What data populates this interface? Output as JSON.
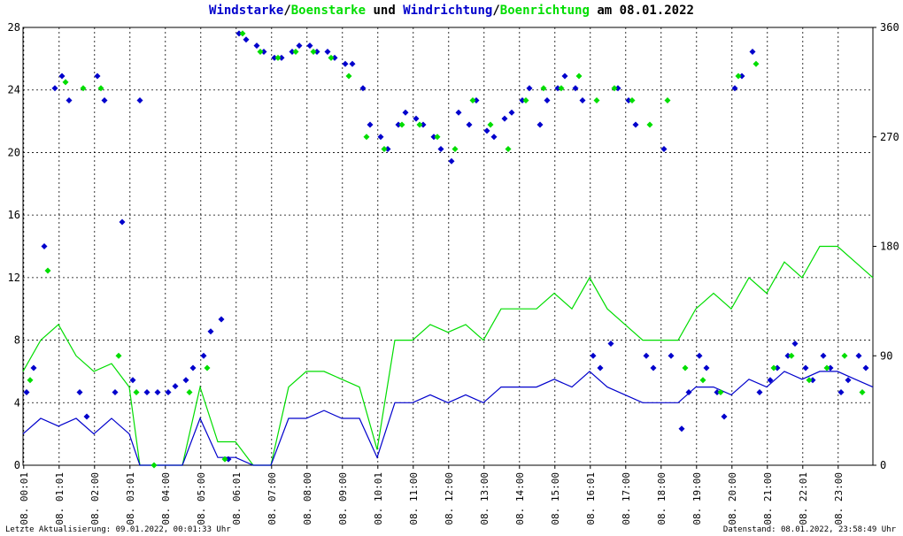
{
  "title": {
    "part1": "Windstarke",
    "slash1": "/",
    "part2": "Boenstarke",
    "part3": " und ",
    "part4": "Windrichtung",
    "slash2": "/",
    "part5": "Boenrichtung",
    "part6": " am 08.01.2022"
  },
  "footer": {
    "left": "Letzte Aktualisierung: 09.01.2022, 00:01:33 Uhr",
    "right": "Datenstand: 08.01.2022, 23:58:49 Uhr"
  },
  "colors": {
    "wind": "#0000cc",
    "gust": "#00dd00",
    "grid": "#000000"
  },
  "chart_data": {
    "type": "line",
    "xlim_hours": [
      0,
      24
    ],
    "x_tick_labels": [
      "08. 00:01",
      "08. 01:01",
      "08. 02:00",
      "08. 03:01",
      "08. 04:00",
      "08. 05:00",
      "08. 06:01",
      "08. 07:00",
      "08. 08:00",
      "08. 09:00",
      "08. 10:01",
      "08. 11:00",
      "08. 12:00",
      "08. 13:00",
      "08. 14:00",
      "08. 15:00",
      "08. 16:01",
      "08. 17:00",
      "08. 18:00",
      "08. 19:00",
      "08. 20:00",
      "08. 21:00",
      "08. 22:01",
      "08. 23:00"
    ],
    "x_tick_hours": [
      0,
      1,
      2,
      3,
      4,
      5,
      6,
      7,
      8,
      9,
      10,
      11,
      12,
      13,
      14,
      15,
      16,
      17,
      18,
      19,
      20,
      21,
      22,
      23
    ],
    "y_left": {
      "ticks": [
        0,
        4,
        8,
        12,
        16,
        20,
        24,
        28
      ],
      "ylim": [
        0,
        28
      ]
    },
    "y_right": {
      "ticks": [
        0,
        90,
        180,
        270,
        360
      ],
      "ylim": [
        0,
        360
      ]
    },
    "grid": true,
    "series": [
      {
        "name": "Windstarke",
        "kind": "line",
        "axis": "left",
        "hours": [
          0,
          0.5,
          1,
          1.5,
          2,
          2.5,
          3,
          3.3,
          3.6,
          4,
          4.5,
          5,
          5.5,
          6,
          6.5,
          7,
          7.5,
          8,
          8.5,
          9,
          9.5,
          10,
          10.5,
          11,
          11.5,
          12,
          12.5,
          13,
          13.5,
          14,
          14.5,
          15,
          15.5,
          16,
          16.5,
          17,
          17.5,
          18,
          18.5,
          19,
          19.5,
          20,
          20.5,
          21,
          21.5,
          22,
          22.5,
          23,
          23.5,
          24
        ],
        "values": [
          2,
          3,
          2.5,
          3,
          2,
          3,
          2,
          0,
          0,
          0,
          0,
          3,
          0.5,
          0.5,
          0,
          0,
          3,
          3,
          3.5,
          3,
          3,
          0.5,
          4,
          4,
          4.5,
          4,
          4.5,
          4,
          5,
          5,
          5,
          5.5,
          5,
          6,
          5,
          4.5,
          4,
          4,
          4,
          5,
          5,
          4.5,
          5.5,
          5,
          6,
          5.5,
          6,
          6,
          5.5,
          5
        ]
      },
      {
        "name": "Boenstarke",
        "kind": "line",
        "axis": "left",
        "hours": [
          0,
          0.5,
          1,
          1.5,
          2,
          2.5,
          3,
          3.3,
          3.6,
          4,
          4.5,
          5,
          5.5,
          6,
          6.5,
          7,
          7.5,
          8,
          8.5,
          9,
          9.5,
          10,
          10.5,
          11,
          11.5,
          12,
          12.5,
          13,
          13.5,
          14,
          14.5,
          15,
          15.5,
          16,
          16.5,
          17,
          17.5,
          18,
          18.5,
          19,
          19.5,
          20,
          20.5,
          21,
          21.5,
          22,
          22.5,
          23,
          23.5,
          24
        ],
        "values": [
          6,
          8,
          9,
          7,
          6,
          6.5,
          5,
          0,
          0,
          0,
          0,
          5,
          1.5,
          1.5,
          0,
          0,
          5,
          6,
          6,
          5.5,
          5,
          1,
          8,
          8,
          9,
          8.5,
          9,
          8,
          10,
          10,
          10,
          11,
          10,
          12,
          10,
          9,
          8,
          8,
          8,
          10,
          11,
          10,
          12,
          11,
          13,
          12,
          14,
          14,
          13,
          12
        ]
      },
      {
        "name": "Windrichtung",
        "kind": "scatter",
        "axis": "right",
        "hours": [
          0.1,
          0.3,
          0.6,
          0.9,
          1.1,
          1.3,
          1.6,
          1.8,
          2.1,
          2.3,
          2.6,
          2.8,
          3.1,
          3.3,
          3.5,
          3.8,
          4.1,
          4.3,
          4.6,
          4.8,
          5.1,
          5.3,
          5.6,
          5.8,
          6.1,
          6.3,
          6.6,
          6.8,
          7.1,
          7.3,
          7.6,
          7.8,
          8.1,
          8.3,
          8.6,
          8.8,
          9.1,
          9.3,
          9.6,
          9.8,
          10.1,
          10.3,
          10.6,
          10.8,
          11.1,
          11.3,
          11.6,
          11.8,
          12.1,
          12.3,
          12.6,
          12.8,
          13.1,
          13.3,
          13.6,
          13.8,
          14.1,
          14.3,
          14.6,
          14.8,
          15.1,
          15.3,
          15.6,
          15.8,
          16.1,
          16.3,
          16.6,
          16.8,
          17.1,
          17.3,
          17.6,
          17.8,
          18.1,
          18.3,
          18.6,
          18.8,
          19.1,
          19.3,
          19.6,
          19.8,
          20.1,
          20.3,
          20.6,
          20.8,
          21.1,
          21.3,
          21.6,
          21.8,
          22.1,
          22.3,
          22.6,
          22.8,
          23.1,
          23.3,
          23.6,
          23.8
        ],
        "values": [
          60,
          80,
          180,
          310,
          320,
          300,
          60,
          40,
          320,
          300,
          60,
          200,
          70,
          300,
          60,
          60,
          60,
          65,
          70,
          80,
          90,
          110,
          120,
          5,
          355,
          350,
          345,
          340,
          335,
          335,
          340,
          345,
          345,
          340,
          340,
          335,
          330,
          330,
          310,
          280,
          270,
          260,
          280,
          290,
          285,
          280,
          270,
          260,
          250,
          290,
          280,
          300,
          275,
          270,
          285,
          290,
          300,
          310,
          280,
          300,
          310,
          320,
          310,
          300,
          90,
          80,
          100,
          310,
          300,
          280,
          90,
          80,
          260,
          90,
          30,
          60,
          90,
          80,
          60,
          40,
          310,
          320,
          340,
          60,
          70,
          80,
          90,
          100,
          80,
          70,
          90,
          80,
          60,
          70,
          90,
          80
        ]
      },
      {
        "name": "Boenrichtung",
        "kind": "scatter",
        "axis": "right",
        "hours": [
          0.2,
          0.7,
          1.2,
          1.7,
          2.2,
          2.7,
          3.2,
          3.7,
          4.7,
          5.2,
          5.7,
          6.2,
          6.7,
          7.2,
          7.7,
          8.2,
          8.7,
          9.2,
          9.7,
          10.2,
          10.7,
          11.2,
          11.7,
          12.2,
          12.7,
          13.2,
          13.7,
          14.2,
          14.7,
          15.2,
          15.7,
          16.2,
          16.7,
          17.2,
          17.7,
          18.2,
          18.7,
          19.2,
          19.7,
          20.2,
          20.7,
          21.2,
          21.7,
          22.2,
          22.7,
          23.2,
          23.7
        ],
        "values": [
          70,
          160,
          315,
          310,
          310,
          90,
          60,
          0,
          60,
          80,
          5,
          355,
          340,
          335,
          340,
          340,
          335,
          320,
          270,
          260,
          280,
          280,
          270,
          260,
          300,
          280,
          260,
          300,
          310,
          310,
          320,
          300,
          310,
          300,
          280,
          300,
          80,
          70,
          60,
          320,
          330,
          80,
          90,
          70,
          80,
          90,
          60
        ]
      }
    ]
  }
}
